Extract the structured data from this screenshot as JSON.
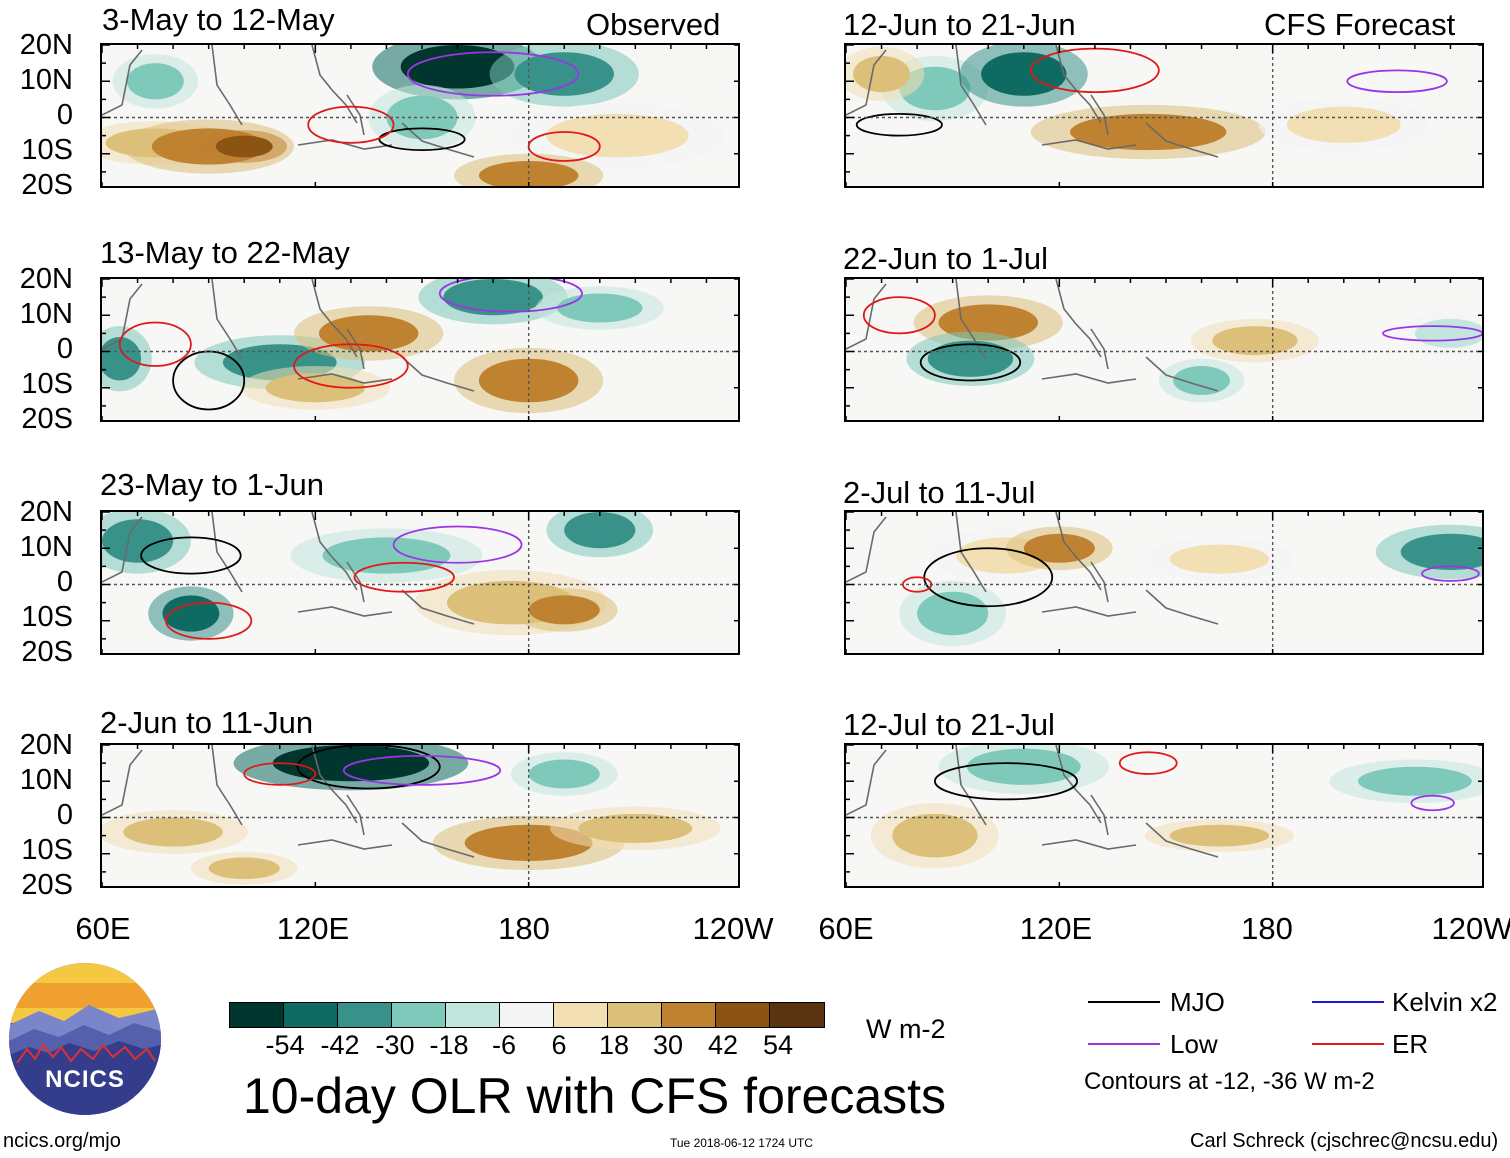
{
  "chart_data": {
    "type": "heatmap",
    "title": "10-day OLR with CFS forecasts",
    "units": "W m-2",
    "columns": [
      {
        "label": "Observed",
        "panels": [
          "3-May to 12-May",
          "13-May to 22-May",
          "23-May to 1-Jun",
          "2-Jun to 11-Jun"
        ]
      },
      {
        "label": "CFS Forecast",
        "panels": [
          "12-Jun to 21-Jun",
          "22-Jun to 1-Jul",
          "2-Jul to 11-Jul",
          "12-Jul to 21-Jul"
        ]
      }
    ],
    "y_ticks": [
      "20N",
      "10N",
      "0",
      "10S",
      "20S"
    ],
    "x_ticks": [
      "60E",
      "120E",
      "180",
      "120W"
    ],
    "x_range_deg_east": [
      60,
      240
    ],
    "y_range_deg_north": [
      -20,
      20
    ],
    "colorbar": {
      "levels": [
        "-54",
        "-42",
        "-30",
        "-18",
        "-6",
        "6",
        "18",
        "30",
        "42",
        "54"
      ],
      "colors": [
        "#01362e",
        "#0f6b62",
        "#399289",
        "#7ec9ba",
        "#c2e6dd",
        "#f4f4f4",
        "#f2dfb4",
        "#dcc07a",
        "#bf8231",
        "#8c5413",
        "#5a3310"
      ]
    },
    "contours": {
      "note": "Contours at -12, -36 W m-2",
      "legend": [
        {
          "name": "MJO",
          "color": "#000000"
        },
        {
          "name": "Kelvin x2",
          "color": "#1a1ad6"
        },
        {
          "name": "Low",
          "color": "#9a35e6"
        },
        {
          "name": "ER",
          "color": "#e01818"
        }
      ]
    }
  },
  "footer": {
    "logo_text": "NCICS",
    "url": "ncics.org/mjo",
    "timestamp": "Tue 2018-06-12 1724 UTC",
    "credit": "Carl Schreck (cjschrec@ncsu.edu)"
  }
}
